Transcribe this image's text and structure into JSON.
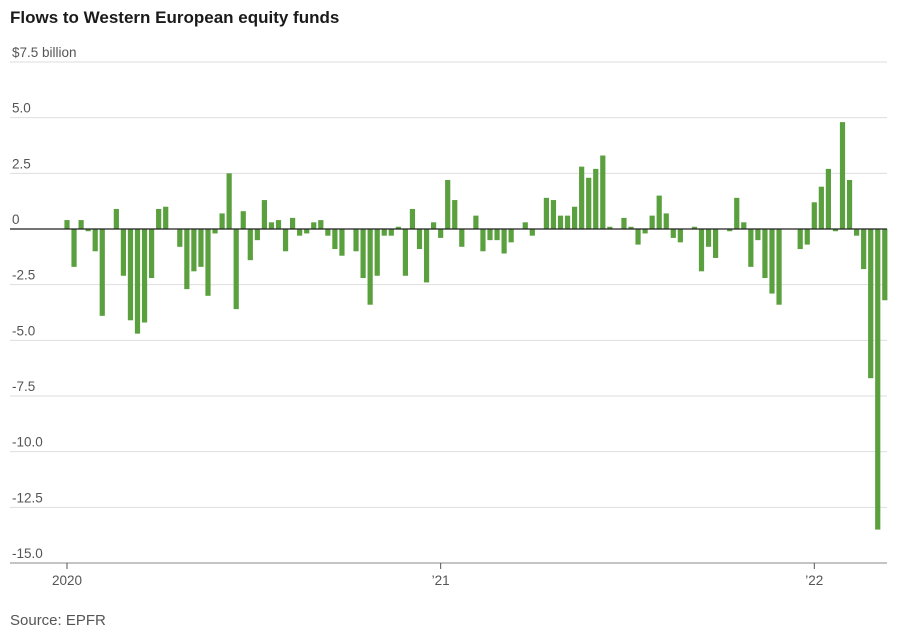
{
  "chart_data": {
    "type": "bar",
    "title": "Flows to Western European equity funds",
    "source": "Source: EPFR",
    "unit": "billion",
    "ylim": [
      -15,
      7.5
    ],
    "yticks": [
      {
        "value": 7.5,
        "label": "$7.5 billion"
      },
      {
        "value": 5,
        "label": "5.0"
      },
      {
        "value": 2.5,
        "label": "2.5"
      },
      {
        "value": 0,
        "label": "0"
      },
      {
        "value": -2.5,
        "label": "-2.5"
      },
      {
        "value": -5,
        "label": "-5.0"
      },
      {
        "value": -7.5,
        "label": "-7.5"
      },
      {
        "value": -10,
        "label": "-10.0"
      },
      {
        "value": -12.5,
        "label": "-12.5"
      },
      {
        "value": -15,
        "label": "-15.0"
      }
    ],
    "xticks": [
      {
        "index": 0,
        "label": "2020"
      },
      {
        "index": 53,
        "label": "’21"
      },
      {
        "index": 106,
        "label": "’22"
      }
    ],
    "grid": true,
    "bar_color": "#5aa03e",
    "values": [
      0.4,
      -1.7,
      0.4,
      -0.1,
      -1.0,
      -3.9,
      0.0,
      0.9,
      -2.1,
      -4.1,
      -4.7,
      -4.2,
      -2.2,
      0.9,
      1.0,
      0.0,
      -0.8,
      -2.7,
      -1.9,
      -1.7,
      -3.0,
      -0.2,
      0.7,
      2.5,
      -3.6,
      0.8,
      -1.4,
      -0.5,
      1.3,
      0.3,
      0.4,
      -1.0,
      0.5,
      -0.3,
      -0.2,
      0.3,
      0.4,
      -0.3,
      -0.9,
      -1.2,
      0.0,
      -1.0,
      -2.2,
      -3.4,
      -2.1,
      -0.3,
      -0.3,
      0.1,
      -2.1,
      0.9,
      -0.9,
      -2.4,
      0.3,
      -0.4,
      2.2,
      1.3,
      -0.8,
      0.0,
      0.6,
      -1.0,
      -0.5,
      -0.5,
      -1.1,
      -0.6,
      0.0,
      0.3,
      -0.3,
      0.0,
      1.4,
      1.3,
      0.6,
      0.6,
      1.0,
      2.8,
      2.3,
      2.7,
      3.3,
      0.1,
      0.0,
      0.5,
      0.1,
      -0.7,
      -0.2,
      0.6,
      1.5,
      0.7,
      -0.4,
      -0.6,
      0.0,
      0.1,
      -1.9,
      -0.8,
      -1.3,
      0.0,
      -0.1,
      1.4,
      0.3,
      -1.7,
      -0.5,
      -2.2,
      -2.9,
      -3.4,
      0.0,
      0.0,
      -0.9,
      -0.7,
      1.2,
      1.9,
      2.7,
      -0.1,
      4.8,
      2.2,
      -0.3,
      -1.8,
      -6.7,
      -13.5,
      -3.2
    ]
  }
}
